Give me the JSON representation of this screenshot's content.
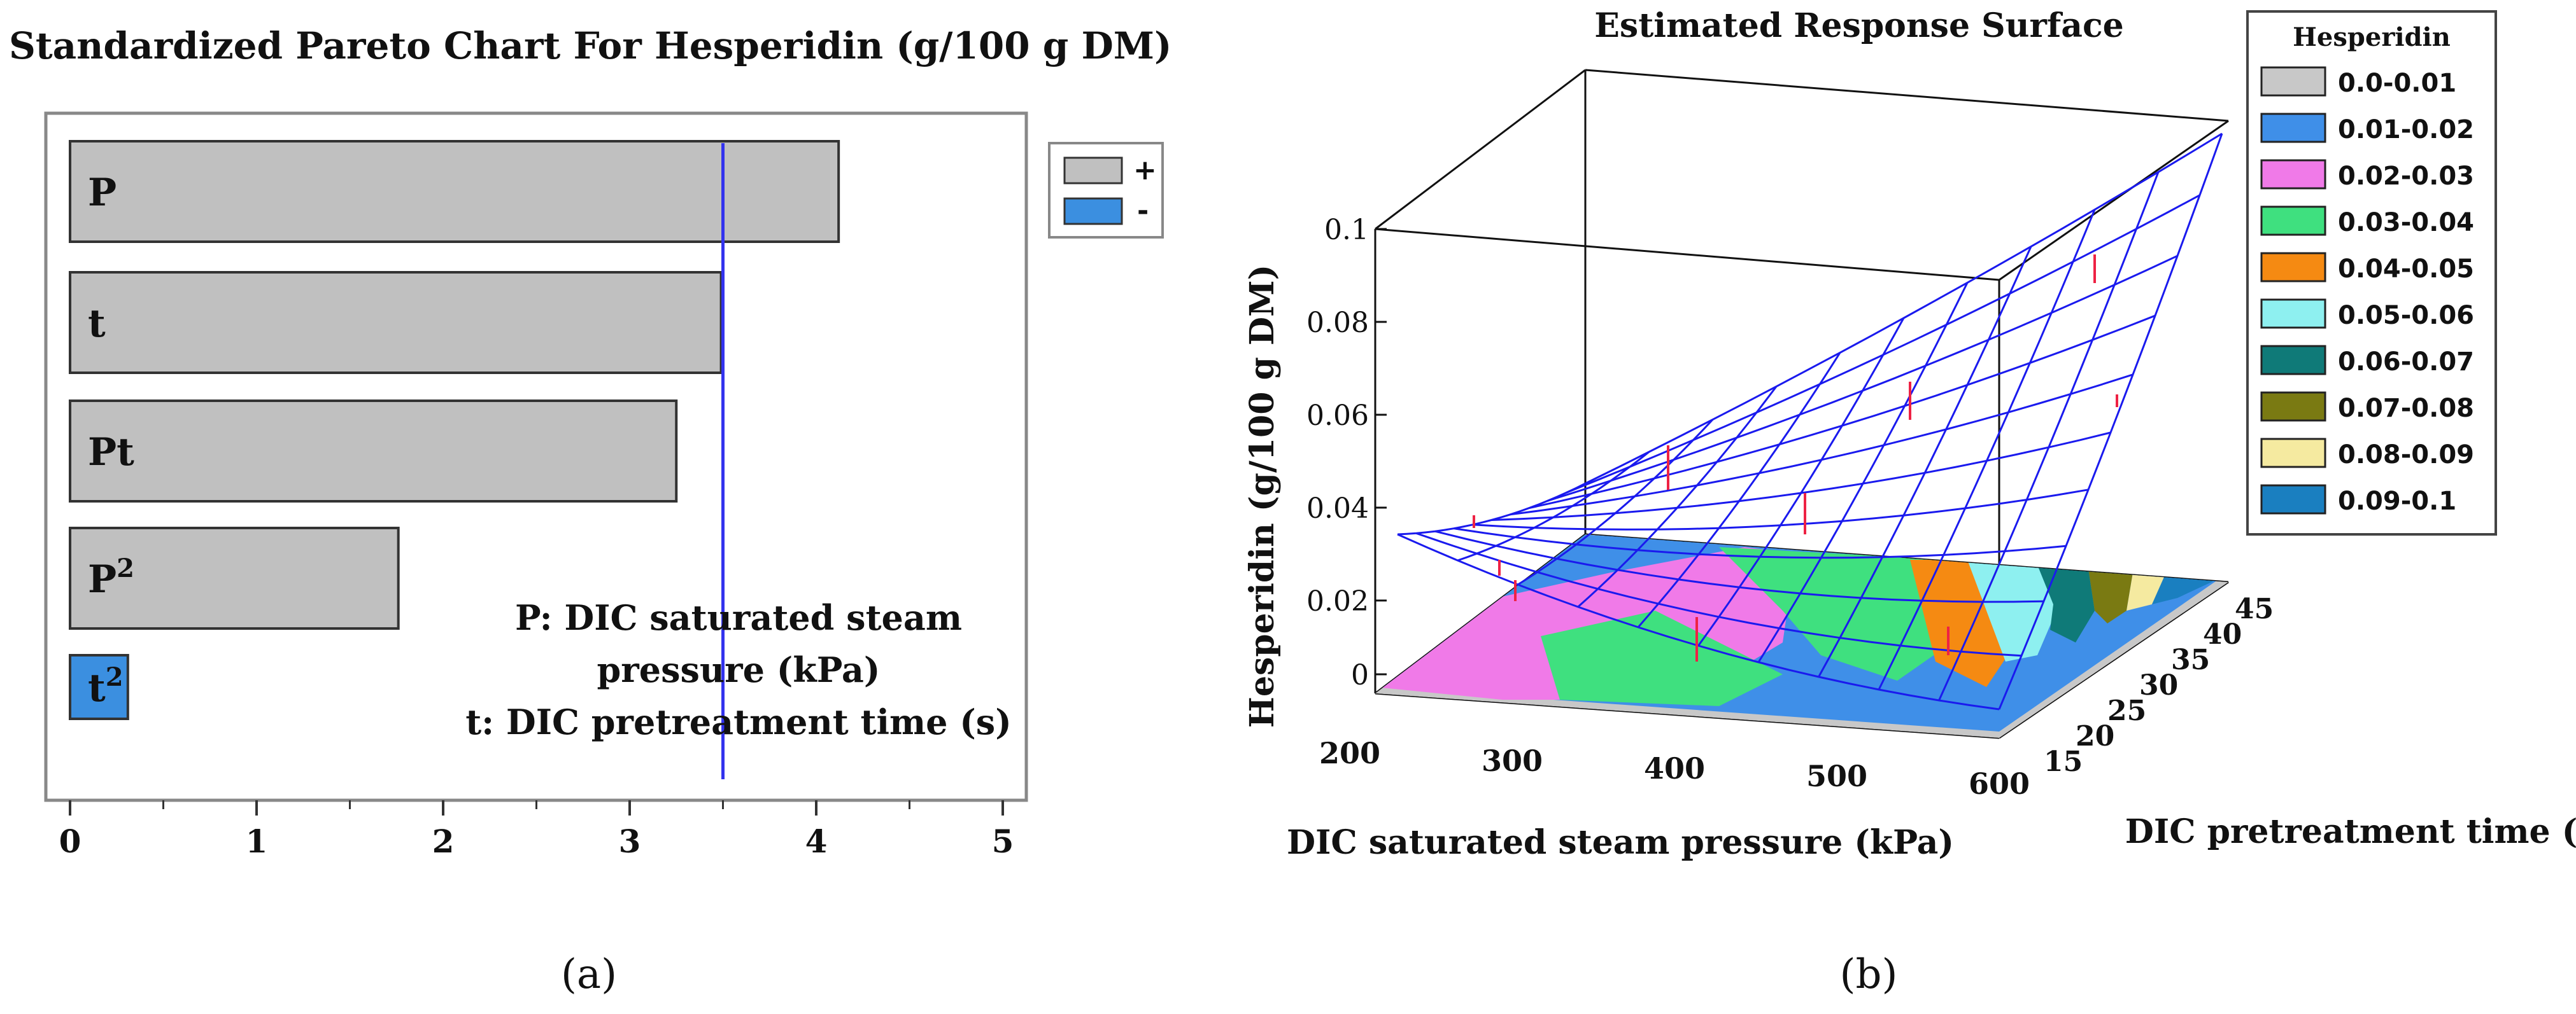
{
  "chart_data": [
    {
      "type": "bar",
      "orientation": "horizontal",
      "title": "Standardized Pareto Chart For Hesperidin (g/100 g DM)",
      "categories": [
        "P",
        "t",
        "Pt",
        "P2",
        "t2"
      ],
      "category_labels": [
        {
          "base": "P",
          "sup": ""
        },
        {
          "base": "t",
          "sup": ""
        },
        {
          "base": "Pt",
          "sup": ""
        },
        {
          "base": "P",
          "sup": "2"
        },
        {
          "base": "t",
          "sup": "2"
        }
      ],
      "values": [
        4.12,
        3.49,
        3.25,
        1.76,
        0.31
      ],
      "signs": [
        "+",
        "+",
        "+",
        "+",
        "-"
      ],
      "xlim": [
        0,
        5
      ],
      "xticks": [
        0,
        1,
        2,
        3,
        4,
        5
      ],
      "significance_line": 3.5,
      "legend": [
        {
          "label": "+",
          "color": "#c0c0c0"
        },
        {
          "label": "-",
          "color": "#3b8fe0"
        }
      ],
      "annotation_lines": [
        "P: DIC saturated steam",
        "pressure (kPa)",
        "t: DIC pretreatment time (s)"
      ],
      "panel_label": "(a)"
    },
    {
      "type": "surface",
      "title": "Estimated Response Surface",
      "xlabel": "DIC saturated steam pressure (kPa)",
      "ylabel": "DIC pretreatment time (s)",
      "zlabel": "Hesperidin (g/100 g DM)",
      "xticks": [
        "200",
        "300",
        "400",
        "500",
        "600"
      ],
      "yticks": [
        "15",
        "20",
        "25",
        "30",
        "35",
        "40",
        "45"
      ],
      "zticks": [
        "0",
        "0.02",
        "0.04",
        "0.06",
        "0.08",
        "0.1"
      ],
      "xlim": [
        200,
        600
      ],
      "ylim": [
        15,
        45
      ],
      "zlim": [
        0,
        0.1
      ],
      "legend_title": "Hesperidin",
      "legend": [
        {
          "label": "0.0-0.01",
          "color": "#c8c8c8"
        },
        {
          "label": "0.01-0.02",
          "color": "#3f8fe8"
        },
        {
          "label": "0.02-0.03",
          "color": "#f07ae8"
        },
        {
          "label": "0.03-0.04",
          "color": "#3fe07f"
        },
        {
          "label": "0.04-0.05",
          "color": "#f58a12"
        },
        {
          "label": "0.05-0.06",
          "color": "#8ef0f0"
        },
        {
          "label": "0.06-0.07",
          "color": "#0f7a78"
        },
        {
          "label": "0.07-0.08",
          "color": "#7a7a12"
        },
        {
          "label": "0.08-0.09",
          "color": "#f5eaa0"
        },
        {
          "label": "0.09-0.1",
          "color": "#1a7fc0"
        }
      ],
      "panel_label": "(b)"
    }
  ]
}
